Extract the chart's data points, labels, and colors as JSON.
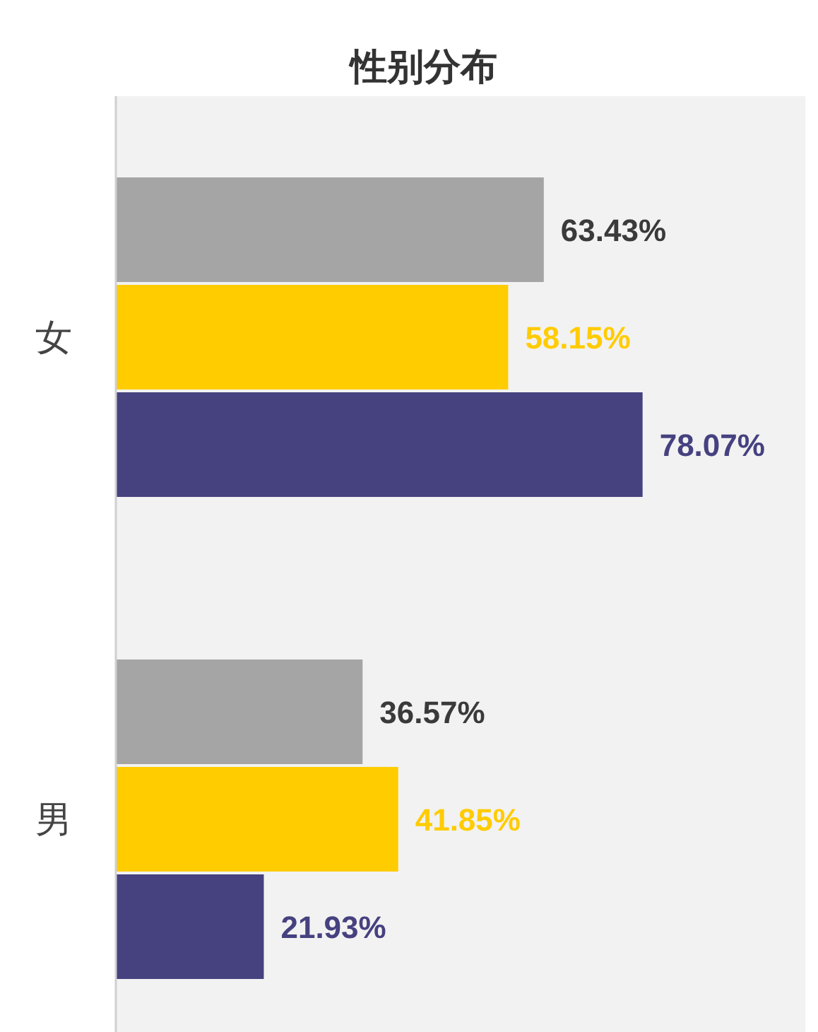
{
  "chart_data": {
    "type": "bar",
    "orientation": "horizontal",
    "title": "性别分布",
    "categories": [
      "女",
      "男"
    ],
    "series": [
      {
        "color": "#a5a5a5",
        "values": [
          63.43,
          36.57
        ],
        "value_labels": [
          "63.43%",
          "36.57%"
        ]
      },
      {
        "color": "#ffcc00",
        "values": [
          58.15,
          41.85
        ],
        "value_labels": [
          "58.15%",
          "41.85%"
        ]
      },
      {
        "color": "#46417f",
        "values": [
          78.07,
          21.93
        ],
        "value_labels": [
          "78.07%",
          "21.93%"
        ]
      }
    ]
  }
}
